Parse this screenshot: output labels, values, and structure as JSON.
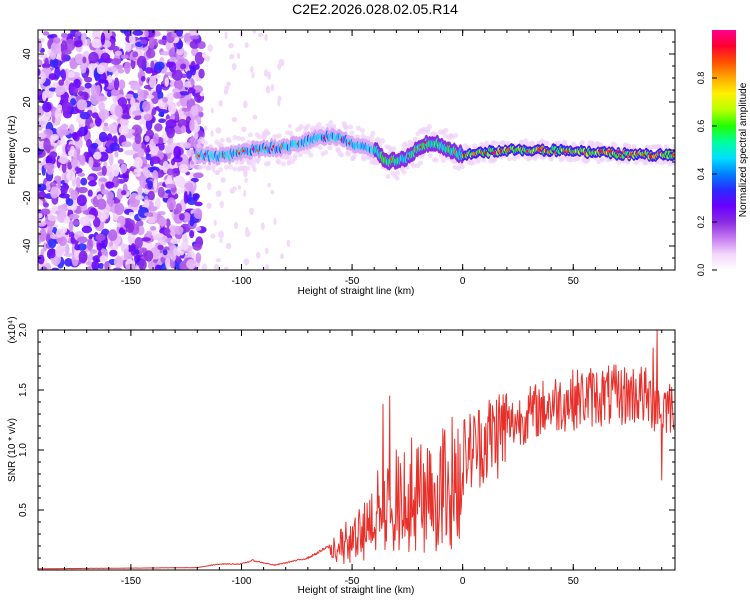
{
  "title": "C2E2.2026.028.02.05.R14",
  "chart_data": [
    {
      "type": "heatmap",
      "xlabel": "Height of straight line (km)",
      "ylabel": "Frequency (Hz)",
      "xlim": [
        -192,
        96
      ],
      "ylim": [
        -50,
        50
      ],
      "xticks": [
        -150,
        -100,
        -50,
        0,
        50
      ],
      "yticks": [
        -40,
        -20,
        0,
        20,
        40
      ],
      "colorbar": {
        "label": "Normalized spectral amplitude",
        "range": [
          0.0,
          1.0
        ],
        "ticks": [
          "0.0",
          "0.2",
          "0.4",
          "0.6",
          "0.8"
        ],
        "colors": [
          "#ffffff",
          "#f2d6fb",
          "#c678f0",
          "#8a2be2",
          "#6a00ff",
          "#2a2aff",
          "#0080ff",
          "#00e0ff",
          "#00ff9c",
          "#22ff00",
          "#b8ff00",
          "#fff200",
          "#ffaa00",
          "#ff5000",
          "#ff0030",
          "#ff0090"
        ]
      },
      "ridge": [
        {
          "x": -120,
          "f": -2
        },
        {
          "x": -110,
          "f": -3
        },
        {
          "x": -100,
          "f": -1
        },
        {
          "x": -90,
          "f": 1
        },
        {
          "x": -80,
          "f": 1
        },
        {
          "x": -70,
          "f": 4
        },
        {
          "x": -60,
          "f": 6
        },
        {
          "x": -50,
          "f": 3
        },
        {
          "x": -40,
          "f": 0
        },
        {
          "x": -35,
          "f": -4
        },
        {
          "x": -30,
          "f": -5
        },
        {
          "x": -25,
          "f": -3
        },
        {
          "x": -20,
          "f": 1
        },
        {
          "x": -15,
          "f": 3
        },
        {
          "x": -10,
          "f": 2
        },
        {
          "x": -5,
          "f": 0
        },
        {
          "x": 0,
          "f": -2
        },
        {
          "x": 10,
          "f": -1
        },
        {
          "x": 20,
          "f": 0
        },
        {
          "x": 40,
          "f": 0
        },
        {
          "x": 60,
          "f": -1
        },
        {
          "x": 80,
          "f": -2
        },
        {
          "x": 95,
          "f": -2
        }
      ]
    },
    {
      "type": "line",
      "xlabel": "Height of straight line (km)",
      "ylabel": "SNR (10 * v/v)",
      "scale_label": "(x10⁴)",
      "xlim": [
        -192,
        96
      ],
      "ylim": [
        0,
        2.0
      ],
      "xticks": [
        -150,
        -100,
        -50,
        0,
        50
      ],
      "yticks": [
        "0.5",
        "1.0",
        "1.5",
        "2.0"
      ],
      "color": "#e8302b",
      "envelope": [
        {
          "x": -192,
          "y": 0.01
        },
        {
          "x": -120,
          "y": 0.02
        },
        {
          "x": -110,
          "y": 0.05
        },
        {
          "x": -100,
          "y": 0.05
        },
        {
          "x": -95,
          "y": 0.08
        },
        {
          "x": -85,
          "y": 0.04
        },
        {
          "x": -70,
          "y": 0.1
        },
        {
          "x": -60,
          "y": 0.2
        },
        {
          "x": -50,
          "y": 0.3
        },
        {
          "x": -45,
          "y": 0.35
        },
        {
          "x": -38,
          "y": 0.55
        },
        {
          "x": -35,
          "y": 0.6
        },
        {
          "x": -30,
          "y": 0.62
        },
        {
          "x": -25,
          "y": 0.68
        },
        {
          "x": -20,
          "y": 0.7
        },
        {
          "x": -15,
          "y": 0.72
        },
        {
          "x": -10,
          "y": 0.78
        },
        {
          "x": -5,
          "y": 0.85
        },
        {
          "x": 0,
          "y": 0.95
        },
        {
          "x": 10,
          "y": 1.08
        },
        {
          "x": 20,
          "y": 1.2
        },
        {
          "x": 30,
          "y": 1.3
        },
        {
          "x": 40,
          "y": 1.38
        },
        {
          "x": 50,
          "y": 1.42
        },
        {
          "x": 60,
          "y": 1.45
        },
        {
          "x": 70,
          "y": 1.45
        },
        {
          "x": 80,
          "y": 1.47
        },
        {
          "x": 90,
          "y": 1.35
        },
        {
          "x": 96,
          "y": 1.4
        }
      ],
      "peaks": [
        {
          "x": -33,
          "y": 1.45
        },
        {
          "x": -36,
          "y": 1.38
        },
        {
          "x": -30,
          "y": 1.0
        },
        {
          "x": -23,
          "y": 1.1
        },
        {
          "x": -20,
          "y": 1.02
        },
        {
          "x": 88,
          "y": 2.0
        },
        {
          "x": 90,
          "y": 0.75
        },
        {
          "x": 86,
          "y": 1.85
        }
      ]
    }
  ]
}
